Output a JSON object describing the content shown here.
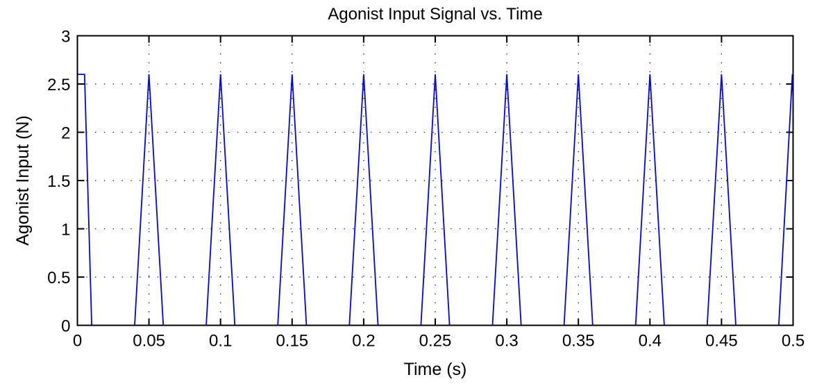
{
  "chart_data": {
    "type": "line",
    "title": "Agonist Input Signal vs. Time",
    "xlabel": "Time (s)",
    "ylabel": "Agonist Input (N)",
    "xlim": [
      0,
      0.5
    ],
    "ylim": [
      0,
      3
    ],
    "grid": true,
    "xticks": [
      0,
      0.05,
      0.1,
      0.15,
      0.2,
      0.25,
      0.3,
      0.35,
      0.4,
      0.45,
      0.5
    ],
    "xtick_labels": [
      "0",
      "0.05",
      "0.1",
      "0.15",
      "0.2",
      "0.25",
      "0.3",
      "0.35",
      "0.4",
      "0.45",
      "0.5"
    ],
    "yticks": [
      0,
      0.5,
      1,
      1.5,
      2,
      2.5,
      3
    ],
    "ytick_labels": [
      "0",
      "0.5",
      "1",
      "1.5",
      "2",
      "2.5",
      "3"
    ],
    "series": [
      {
        "name": "Agonist input",
        "color": "#0000ff",
        "x": [
          0,
          0.005,
          0.01,
          0.04,
          0.05,
          0.06,
          0.09,
          0.1,
          0.11,
          0.14,
          0.15,
          0.16,
          0.19,
          0.2,
          0.21,
          0.24,
          0.25,
          0.26,
          0.29,
          0.3,
          0.31,
          0.34,
          0.35,
          0.36,
          0.39,
          0.4,
          0.41,
          0.44,
          0.45,
          0.46,
          0.49,
          0.4995,
          0.5
        ],
        "y": [
          2.6,
          2.6,
          0,
          0,
          2.6,
          0,
          0,
          2.6,
          0,
          0,
          2.6,
          0,
          0,
          2.6,
          0,
          0,
          2.6,
          0,
          0,
          2.6,
          0,
          0,
          2.6,
          0,
          0,
          2.6,
          0,
          0,
          2.6,
          0,
          0,
          2.6,
          2.35
        ]
      }
    ]
  }
}
